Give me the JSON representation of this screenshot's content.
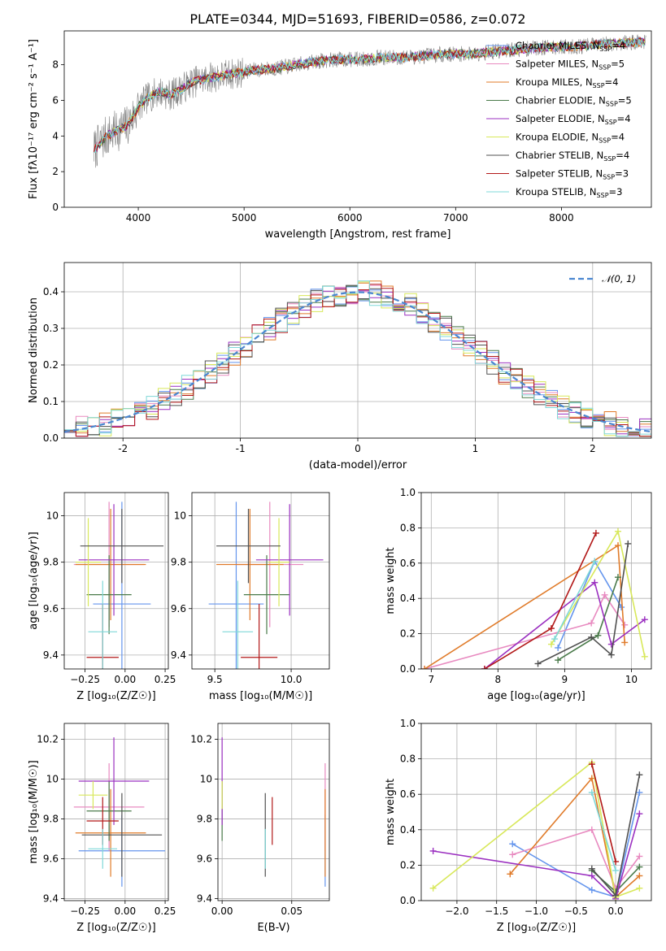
{
  "figure": {
    "title": "PLATE=0344, MJD=51693, FIBERID=0586, z=0.072"
  },
  "chart_data": [
    {
      "id": "spectrum",
      "type": "line",
      "xlabel": "wavelength [Angstrom, rest frame]",
      "ylabel": "Flux [fλ10⁻¹⁷ erg cm⁻² s⁻¹ A⁻¹]",
      "xlim": [
        3300,
        8850
      ],
      "ylim": [
        0,
        9.9
      ],
      "xticks": [
        4000,
        5000,
        6000,
        7000,
        8000
      ],
      "yticks": [
        0,
        2,
        4,
        6,
        8
      ],
      "grid": false,
      "legend_position": "right",
      "data_series": {
        "name": "",
        "color": "#808080",
        "x": [
          3580,
          3700,
          3800,
          3900,
          4000,
          4100,
          4200,
          4300,
          4400,
          4500,
          4700,
          4900,
          5100,
          5300,
          5500,
          5700,
          5900,
          6100,
          6300,
          6500,
          6700,
          6900,
          7100,
          7300,
          7500,
          7700,
          7900,
          8100,
          8300,
          8500,
          8800
        ],
        "y": [
          3.2,
          4.0,
          4.3,
          4.6,
          5.6,
          6.2,
          6.5,
          6.3,
          6.6,
          7.0,
          7.3,
          7.5,
          7.7,
          7.8,
          8.0,
          8.2,
          8.3,
          8.3,
          8.4,
          8.4,
          8.5,
          8.6,
          8.6,
          8.7,
          8.8,
          8.9,
          9.0,
          9.0,
          9.1,
          9.2,
          9.3
        ]
      },
      "models": [
        {
          "name": "Chabrier MILES",
          "nssp": "4",
          "color": "#6495ED"
        },
        {
          "name": "Salpeter MILES",
          "nssp": "5",
          "color": "#E88AC0"
        },
        {
          "name": "Kroupa MILES",
          "nssp": "4",
          "color": "#E07B2A"
        },
        {
          "name": "Chabrier ELODIE",
          "nssp": "5",
          "color": "#4A7A4A"
        },
        {
          "name": "Salpeter ELODIE",
          "nssp": "4",
          "color": "#9B30C0"
        },
        {
          "name": "Kroupa ELODIE",
          "nssp": "4",
          "color": "#D8E85A"
        },
        {
          "name": "Chabrier STELIB",
          "nssp": "4",
          "color": "#505050"
        },
        {
          "name": "Salpeter STELIB",
          "nssp": "3",
          "color": "#B21818"
        },
        {
          "name": "Kroupa STELIB",
          "nssp": "3",
          "color": "#7FD8D8"
        }
      ]
    },
    {
      "id": "residuals",
      "type": "histogram",
      "xlabel": "(data-model)/error",
      "ylabel": "Normed distribution",
      "xlim": [
        -2.5,
        2.5
      ],
      "ylim": [
        0,
        0.48
      ],
      "xticks": [
        -2,
        -1,
        0,
        1,
        2
      ],
      "yticks": [
        0.0,
        0.1,
        0.2,
        0.3,
        0.4
      ],
      "grid": true,
      "legend_position": "top-right",
      "legend_label": "𝒩(0, 1)",
      "bin_width": 0.1,
      "bins_from": -2.5
    },
    {
      "id": "age-vs-Z",
      "type": "errorbar",
      "xlabel": "Z [log₁₀(Z/Z☉)]",
      "ylabel": "age  [log₁₀(age/yr)]",
      "xlim": [
        -0.38,
        0.27
      ],
      "ylim": [
        9.34,
        10.1
      ],
      "xticks": [
        -0.25,
        0.0,
        0.25
      ],
      "xtick_labels": [
        "−0.25",
        "0.00",
        "0.25"
      ],
      "yticks": [
        9.4,
        9.6,
        9.8,
        10.0
      ],
      "grid": true,
      "points": [
        {
          "model": "Chabrier MILES",
          "x": -0.02,
          "xerr": 0.18,
          "y": 9.62,
          "yerr": 0.44
        },
        {
          "model": "Salpeter MILES",
          "x": -0.1,
          "xerr": 0.22,
          "y": 9.79,
          "yerr": 0.27
        },
        {
          "model": "Kroupa MILES",
          "x": -0.09,
          "xerr": 0.22,
          "y": 9.79,
          "yerr": 0.24
        },
        {
          "model": "Chabrier ELODIE",
          "x": -0.1,
          "xerr": 0.14,
          "y": 9.66,
          "yerr": 0.17
        },
        {
          "model": "Salpeter ELODIE",
          "x": -0.07,
          "xerr": 0.22,
          "y": 9.81,
          "yerr": 0.24
        },
        {
          "model": "Kroupa ELODIE",
          "x": -0.23,
          "xerr": 0.08,
          "y": 9.8,
          "yerr": 0.19
        },
        {
          "model": "Chabrier STELIB",
          "x": -0.02,
          "xerr": 0.26,
          "y": 9.87,
          "yerr": 0.16
        },
        {
          "model": "Salpeter STELIB",
          "x": -0.14,
          "xerr": 0.1,
          "y": 9.39,
          "yerr": 0.23
        },
        {
          "model": "Kroupa STELIB",
          "x": -0.14,
          "xerr": 0.09,
          "y": 9.5,
          "yerr": 0.22
        }
      ]
    },
    {
      "id": "age-vs-mass",
      "type": "errorbar",
      "xlabel": "mass [log₁₀(M/M☉)]",
      "ylabel": "",
      "xlim": [
        9.35,
        10.25
      ],
      "ylim": [
        9.34,
        10.1
      ],
      "xticks": [
        9.5,
        10.0
      ],
      "xtick_labels": [
        "9.5",
        "10.0"
      ],
      "yticks": [
        9.4,
        9.6,
        9.8,
        10.0
      ],
      "grid": true,
      "points": [
        {
          "model": "Chabrier MILES",
          "x": 9.64,
          "xerr": 0.18,
          "y": 9.62,
          "yerr": 0.44
        },
        {
          "model": "Salpeter MILES",
          "x": 9.86,
          "xerr": 0.22,
          "y": 9.79,
          "yerr": 0.27
        },
        {
          "model": "Kroupa MILES",
          "x": 9.73,
          "xerr": 0.22,
          "y": 9.79,
          "yerr": 0.24
        },
        {
          "model": "Chabrier ELODIE",
          "x": 9.84,
          "xerr": 0.15,
          "y": 9.66,
          "yerr": 0.17
        },
        {
          "model": "Salpeter ELODIE",
          "x": 9.99,
          "xerr": 0.22,
          "y": 9.81,
          "yerr": 0.24
        },
        {
          "model": "Kroupa ELODIE",
          "x": 9.92,
          "xerr": 0.07,
          "y": 9.8,
          "yerr": 0.19
        },
        {
          "model": "Chabrier STELIB",
          "x": 9.72,
          "xerr": 0.21,
          "y": 9.87,
          "yerr": 0.16
        },
        {
          "model": "Salpeter STELIB",
          "x": 9.79,
          "xerr": 0.12,
          "y": 9.39,
          "yerr": 0.23
        },
        {
          "model": "Kroupa STELIB",
          "x": 9.65,
          "xerr": 0.1,
          "y": 9.5,
          "yerr": 0.22
        }
      ]
    },
    {
      "id": "weight-vs-age",
      "type": "line",
      "xlabel": "age  [log₁₀(age/yr)]",
      "ylabel": "mass weight",
      "xlim": [
        6.85,
        10.3
      ],
      "ylim": [
        0,
        1.0
      ],
      "xticks": [
        7,
        8,
        9,
        10
      ],
      "yticks": [
        0.0,
        0.2,
        0.4,
        0.6,
        0.8,
        1.0
      ],
      "grid": true,
      "series": [
        {
          "model": "Chabrier MILES",
          "x": [
            8.9,
            9.45,
            9.85
          ],
          "y": [
            0.12,
            0.61,
            0.35
          ]
        },
        {
          "model": "Salpeter MILES",
          "x": [
            6.9,
            9.4,
            9.6,
            9.9
          ],
          "y": [
            0.0,
            0.26,
            0.42,
            0.25
          ]
        },
        {
          "model": "Kroupa MILES",
          "x": [
            6.9,
            9.8,
            9.9
          ],
          "y": [
            0.0,
            0.7,
            0.15
          ]
        },
        {
          "model": "Chabrier ELODIE",
          "x": [
            8.9,
            9.5,
            9.8
          ],
          "y": [
            0.05,
            0.19,
            0.52
          ]
        },
        {
          "model": "Salpeter ELODIE",
          "x": [
            7.8,
            9.45,
            9.7,
            10.2
          ],
          "y": [
            0.0,
            0.49,
            0.14,
            0.28
          ]
        },
        {
          "model": "Kroupa ELODIE",
          "x": [
            8.8,
            9.8,
            10.2
          ],
          "y": [
            0.14,
            0.78,
            0.07
          ]
        },
        {
          "model": "Chabrier STELIB",
          "x": [
            8.6,
            9.4,
            9.7,
            9.95
          ],
          "y": [
            0.03,
            0.18,
            0.08,
            0.71
          ]
        },
        {
          "model": "Salpeter STELIB",
          "x": [
            7.8,
            8.8,
            9.47
          ],
          "y": [
            0.0,
            0.23,
            0.77
          ]
        },
        {
          "model": "Kroupa STELIB",
          "x": [
            8.85,
            9.45
          ],
          "y": [
            0.17,
            0.61
          ]
        }
      ]
    },
    {
      "id": "mass-vs-Z",
      "type": "errorbar",
      "xlabel": "Z [log₁₀(Z/Z☉)]",
      "ylabel": "mass [log₁₀(M/M☉)]",
      "xlim": [
        -0.38,
        0.27
      ],
      "ylim": [
        9.39,
        10.28
      ],
      "xticks": [
        -0.25,
        0.0,
        0.25
      ],
      "xtick_labels": [
        "−0.25",
        "0.00",
        "0.25"
      ],
      "yticks": [
        9.4,
        9.6,
        9.8,
        10.0,
        10.2
      ],
      "grid": true,
      "points": [
        {
          "model": "Chabrier MILES",
          "x": -0.02,
          "xerr": 0.27,
          "y": 9.64,
          "yerr": 0.18
        },
        {
          "model": "Salpeter MILES",
          "x": -0.1,
          "xerr": 0.22,
          "y": 9.86,
          "yerr": 0.22
        },
        {
          "model": "Kroupa MILES",
          "x": -0.09,
          "xerr": 0.22,
          "y": 9.73,
          "yerr": 0.22
        },
        {
          "model": "Chabrier ELODIE",
          "x": -0.1,
          "xerr": 0.14,
          "y": 9.84,
          "yerr": 0.15
        },
        {
          "model": "Salpeter ELODIE",
          "x": -0.07,
          "xerr": 0.22,
          "y": 9.99,
          "yerr": 0.22
        },
        {
          "model": "Kroupa ELODIE",
          "x": -0.2,
          "xerr": 0.09,
          "y": 9.92,
          "yerr": 0.07
        },
        {
          "model": "Chabrier STELIB",
          "x": -0.02,
          "xerr": 0.25,
          "y": 9.72,
          "yerr": 0.21
        },
        {
          "model": "Salpeter STELIB",
          "x": -0.14,
          "xerr": 0.1,
          "y": 9.79,
          "yerr": 0.12
        },
        {
          "model": "Kroupa STELIB",
          "x": -0.14,
          "xerr": 0.09,
          "y": 9.65,
          "yerr": 0.1
        }
      ]
    },
    {
      "id": "mass-vs-ebv",
      "type": "errorbar",
      "xlabel": "E(B-V)",
      "ylabel": "",
      "xlim": [
        -0.003,
        0.077
      ],
      "ylim": [
        9.39,
        10.28
      ],
      "xticks": [
        0.0,
        0.05
      ],
      "xtick_labels": [
        "0.00",
        "0.05"
      ],
      "yticks": [
        9.4,
        9.6,
        9.8,
        10.0,
        10.2
      ],
      "grid": true,
      "points": [
        {
          "model": "Chabrier MILES",
          "x": 0.074,
          "xerr": 0,
          "y": 9.64,
          "yerr": 0.18
        },
        {
          "model": "Salpeter MILES",
          "x": 0.074,
          "xerr": 0,
          "y": 9.86,
          "yerr": 0.22
        },
        {
          "model": "Kroupa MILES",
          "x": 0.074,
          "xerr": 0,
          "y": 9.73,
          "yerr": 0.22
        },
        {
          "model": "Chabrier ELODIE",
          "x": 0.0,
          "xerr": 0,
          "y": 9.84,
          "yerr": 0.15
        },
        {
          "model": "Salpeter ELODIE",
          "x": 0.0,
          "xerr": 0,
          "y": 9.99,
          "yerr": 0.22
        },
        {
          "model": "Kroupa ELODIE",
          "x": 0.0,
          "xerr": 0,
          "y": 9.92,
          "yerr": 0.07
        },
        {
          "model": "Chabrier STELIB",
          "x": 0.031,
          "xerr": 0,
          "y": 9.72,
          "yerr": 0.21
        },
        {
          "model": "Salpeter STELIB",
          "x": 0.036,
          "xerr": 0,
          "y": 9.79,
          "yerr": 0.12
        },
        {
          "model": "Kroupa STELIB",
          "x": 0.031,
          "xerr": 0,
          "y": 9.65,
          "yerr": 0.1
        }
      ]
    },
    {
      "id": "weight-vs-Z",
      "type": "line",
      "xlabel": "Z [log₁₀(Z/Z☉)]",
      "ylabel": "mass weight",
      "xlim": [
        -2.45,
        0.45
      ],
      "ylim": [
        0,
        1.0
      ],
      "xticks": [
        -2.0,
        -1.5,
        -1.0,
        -0.5,
        0.0
      ],
      "xtick_labels": [
        "−2.0",
        "−1.5",
        "−1.0",
        "−0.5",
        "0.0"
      ],
      "yticks": [
        0.0,
        0.2,
        0.4,
        0.6,
        0.8,
        1.0
      ],
      "grid": true,
      "series": [
        {
          "model": "Chabrier MILES",
          "x": [
            -1.3,
            -0.3,
            0.0,
            0.3
          ],
          "y": [
            0.32,
            0.06,
            0.02,
            0.61
          ]
        },
        {
          "model": "Salpeter MILES",
          "x": [
            -1.3,
            -0.3,
            0.0,
            0.3
          ],
          "y": [
            0.26,
            0.4,
            0.07,
            0.25
          ]
        },
        {
          "model": "Kroupa MILES",
          "x": [
            -1.33,
            -0.3,
            0.0,
            0.3
          ],
          "y": [
            0.15,
            0.69,
            0.02,
            0.14
          ]
        },
        {
          "model": "Chabrier ELODIE",
          "x": [
            -0.3,
            0.0,
            0.3
          ],
          "y": [
            0.17,
            0.05,
            0.19
          ]
        },
        {
          "model": "Salpeter ELODIE",
          "x": [
            -2.3,
            -0.3,
            0.0,
            0.3
          ],
          "y": [
            0.28,
            0.14,
            0.01,
            0.49
          ]
        },
        {
          "model": "Kroupa ELODIE",
          "x": [
            -2.3,
            -0.3,
            0.0,
            0.3
          ],
          "y": [
            0.07,
            0.78,
            0.02,
            0.07
          ]
        },
        {
          "model": "Chabrier STELIB",
          "x": [
            -0.3,
            0.0,
            0.3
          ],
          "y": [
            0.18,
            0.03,
            0.71
          ]
        },
        {
          "model": "Salpeter STELIB",
          "x": [
            -0.3,
            0.0
          ],
          "y": [
            0.77,
            0.22
          ]
        },
        {
          "model": "Kroupa STELIB",
          "x": [
            -0.3,
            0.0
          ],
          "y": [
            0.61,
            0.17
          ]
        }
      ]
    }
  ]
}
